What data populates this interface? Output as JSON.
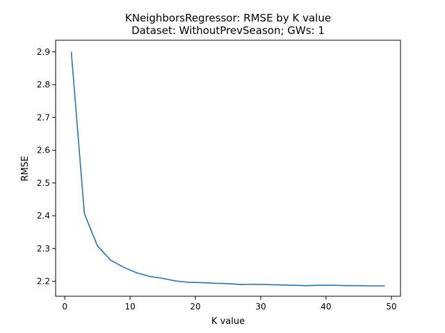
{
  "chart_data": {
    "type": "line",
    "title": "KNeighborsRegressor: RMSE by K value",
    "subtitle": "Dataset: WithoutPrevSeason; GWs: 1",
    "xlabel": "K value",
    "ylabel": "RMSE",
    "xlim": [
      -1.4,
      51.4
    ],
    "ylim": [
      2.1545,
      2.9355
    ],
    "x_ticks": [
      0,
      10,
      20,
      30,
      40,
      50
    ],
    "y_ticks": [
      2.2,
      2.3,
      2.4,
      2.5,
      2.6,
      2.7,
      2.8,
      2.9
    ],
    "grid": false,
    "series": [
      {
        "color": "#1f77b4",
        "x": [
          1,
          3,
          5,
          7,
          9,
          11,
          13,
          15,
          17,
          19,
          21,
          23,
          25,
          27,
          29,
          31,
          33,
          35,
          37,
          39,
          41,
          43,
          45,
          47,
          49
        ],
        "y": [
          2.9,
          2.407,
          2.308,
          2.265,
          2.243,
          2.226,
          2.215,
          2.209,
          2.201,
          2.197,
          2.196,
          2.194,
          2.193,
          2.19,
          2.191,
          2.19,
          2.189,
          2.188,
          2.187,
          2.188,
          2.188,
          2.187,
          2.187,
          2.186,
          2.186
        ]
      }
    ]
  }
}
